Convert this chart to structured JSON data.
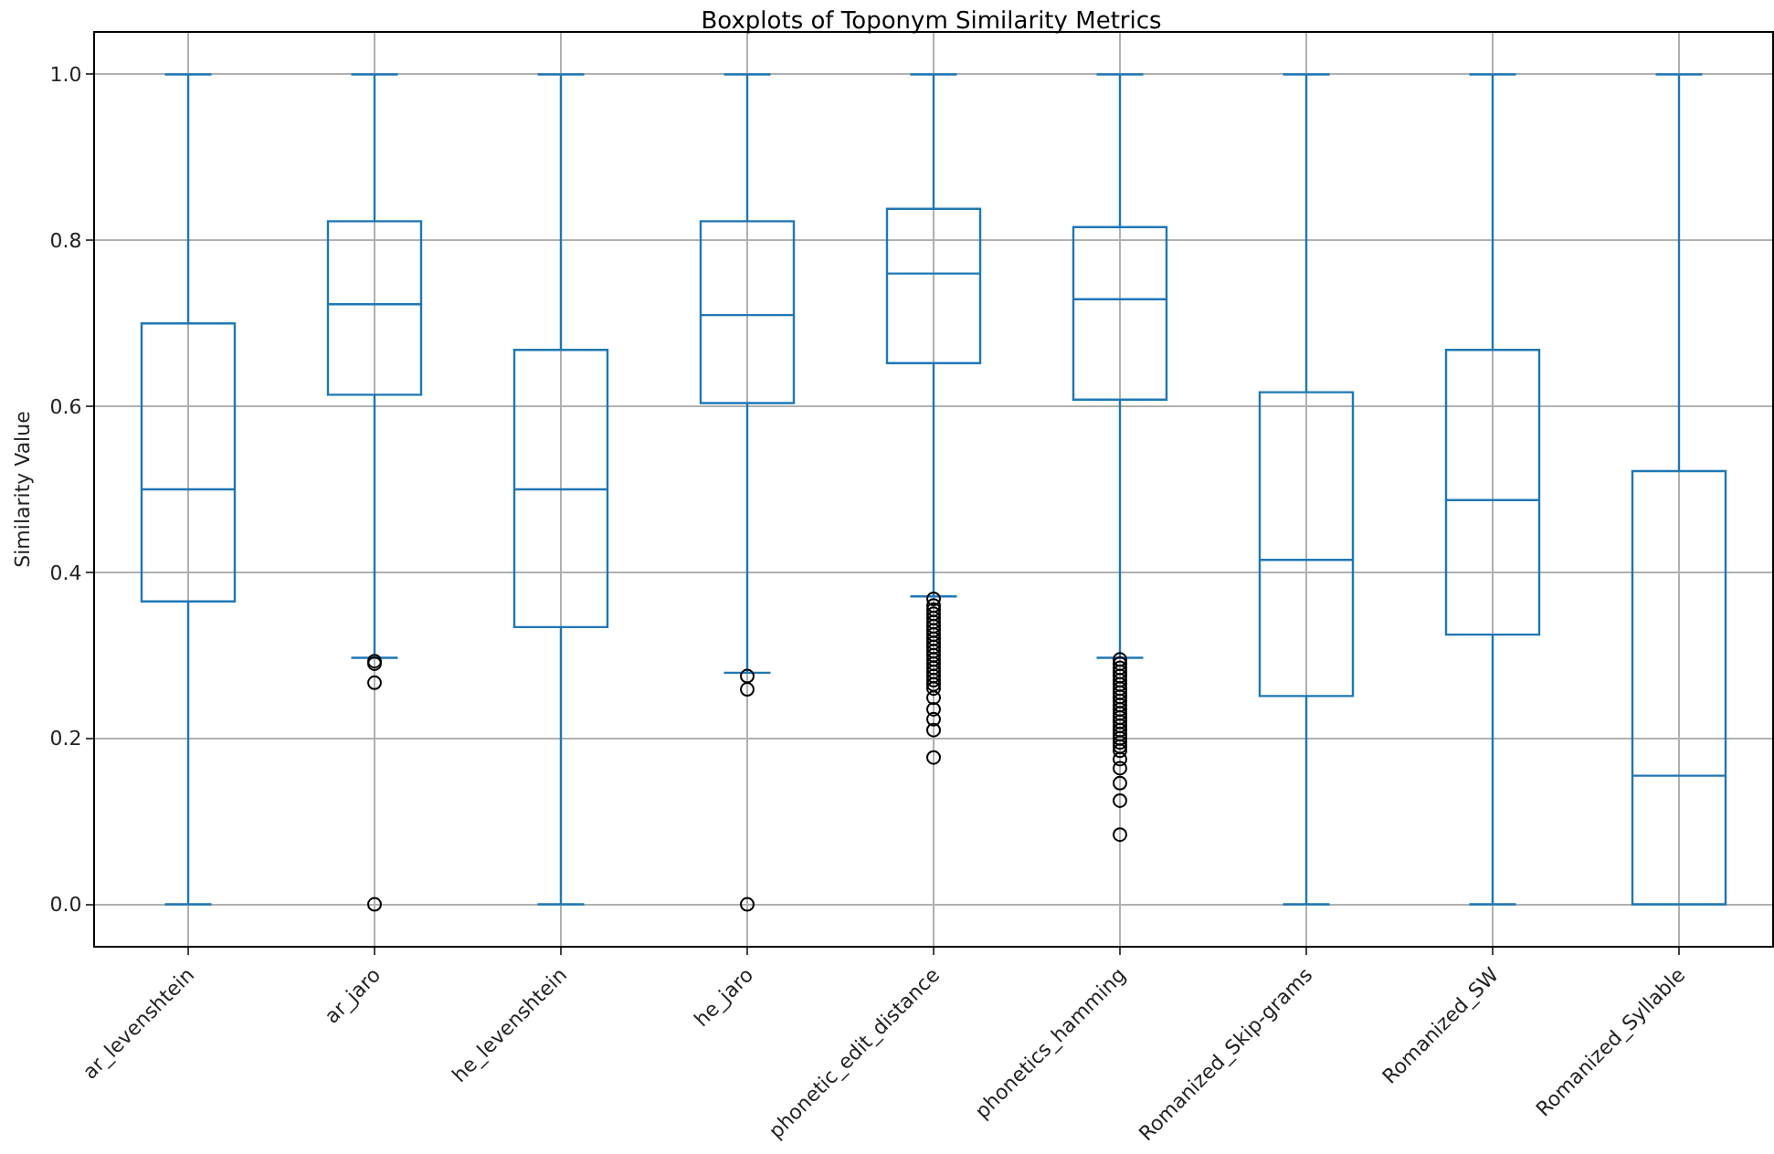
{
  "chart_data": {
    "type": "box",
    "title": "Boxplots of Toponym Similarity Metrics",
    "ylabel": "Similarity Value",
    "categories": [
      "ar_levenshtein",
      "ar_jaro",
      "he_levenshtein",
      "he_jaro",
      "phonetic_edit_distance",
      "phonetics_hamming",
      "Romanized_Skip-grams",
      "Romanized_SW",
      "Romanized_Syllable"
    ],
    "color": "#1f77b4",
    "grid": true,
    "marker": "circle",
    "ylim": [
      -0.05,
      1.05
    ],
    "yticks": [
      {
        "value": 0,
        "label": "0.0"
      },
      {
        "value": 0.2,
        "label": "0.2"
      },
      {
        "value": 0.4,
        "label": "0.4"
      },
      {
        "value": 0.6,
        "label": "0.6"
      },
      {
        "value": 0.8,
        "label": "0.8"
      },
      {
        "value": 1,
        "label": "1.0"
      }
    ],
    "boxes": [
      {
        "low": 0,
        "q1": 0.365,
        "median": 0.5,
        "q3": 0.7,
        "high": 1
      },
      {
        "low": 0.297,
        "q1": 0.614,
        "median": 0.723,
        "q3": 0.823,
        "high": 1,
        "outliers": [
          0.293,
          0.29,
          0.267,
          0
        ]
      },
      {
        "low": 0,
        "q1": 0.334,
        "median": 0.5,
        "q3": 0.668,
        "high": 1
      },
      {
        "low": 0.279,
        "q1": 0.604,
        "median": 0.71,
        "q3": 0.823,
        "high": 1,
        "outliers": [
          0.275,
          0.259,
          0
        ]
      },
      {
        "low": 0.371,
        "q1": 0.652,
        "median": 0.76,
        "q3": 0.838,
        "high": 1,
        "outliers": [
          0.368,
          0.36,
          0.355,
          0.35,
          0.345,
          0.34,
          0.335,
          0.33,
          0.325,
          0.32,
          0.315,
          0.31,
          0.305,
          0.3,
          0.295,
          0.29,
          0.285,
          0.28,
          0.275,
          0.27,
          0.265,
          0.26,
          0.249,
          0.235,
          0.223,
          0.21,
          0.177
        ]
      },
      {
        "low": 0.297,
        "q1": 0.608,
        "median": 0.729,
        "q3": 0.816,
        "high": 1,
        "outliers": [
          0.295,
          0.29,
          0.285,
          0.28,
          0.275,
          0.27,
          0.265,
          0.26,
          0.255,
          0.25,
          0.245,
          0.24,
          0.235,
          0.23,
          0.225,
          0.22,
          0.215,
          0.21,
          0.205,
          0.2,
          0.195,
          0.19,
          0.185,
          0.175,
          0.164,
          0.146,
          0.125,
          0.084
        ]
      },
      {
        "low": 0,
        "q1": 0.251,
        "median": 0.415,
        "q3": 0.617,
        "high": 1
      },
      {
        "low": 0,
        "q1": 0.325,
        "median": 0.487,
        "q3": 0.668,
        "high": 1
      },
      {
        "low": 0,
        "q1": 0,
        "median": 0.155,
        "q3": 0.522,
        "high": 1
      }
    ]
  }
}
